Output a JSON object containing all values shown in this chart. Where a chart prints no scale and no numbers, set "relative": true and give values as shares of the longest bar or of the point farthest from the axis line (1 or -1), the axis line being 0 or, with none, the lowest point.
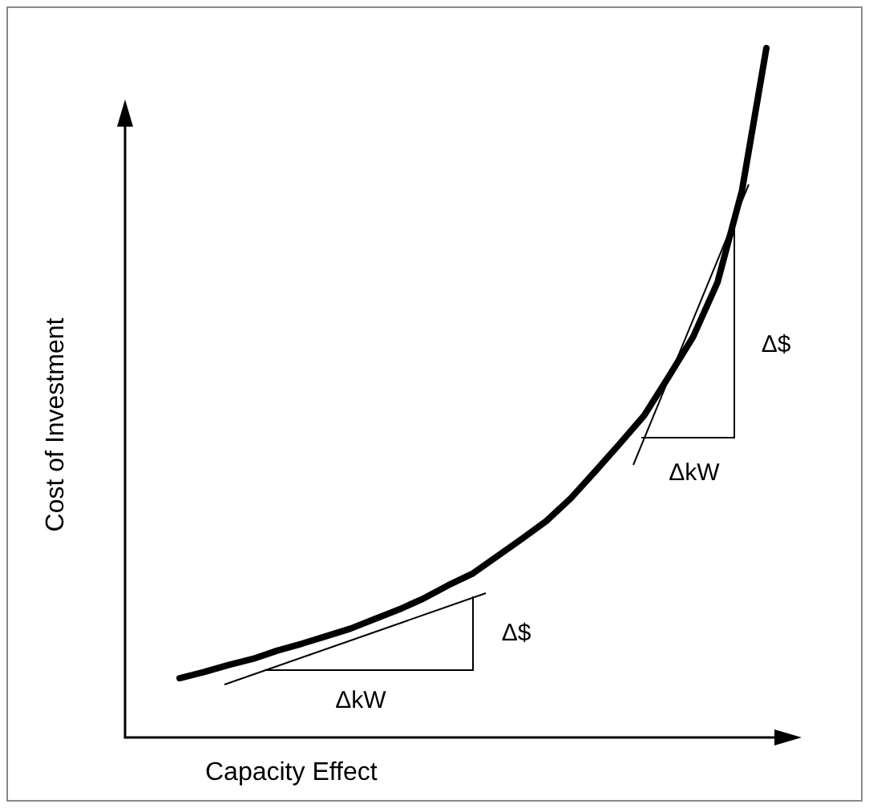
{
  "chart_data": {
    "type": "line",
    "relative": true,
    "xlabel": "Capacity Effect",
    "ylabel": "Cost of Investment",
    "tick_labels": false,
    "grid": false,
    "marker": "none",
    "line_style": "solid",
    "categories": [
      null,
      null,
      null,
      null,
      null,
      null,
      null,
      null,
      null,
      null,
      null,
      null,
      null,
      null,
      null,
      null,
      null,
      null,
      null,
      null,
      null,
      null,
      null,
      null,
      null
    ],
    "series": [
      {
        "color": "#000000",
        "values": [
          0.086,
          0.095,
          0.105,
          0.114,
          0.126,
          0.136,
          0.147,
          0.158,
          0.172,
          0.186,
          0.202,
          0.221,
          0.238,
          0.263,
          0.288,
          0.314,
          0.347,
          0.386,
          0.426,
          0.467,
          0.523,
          0.581,
          0.66,
          0.793,
          1
        ]
      }
    ],
    "annotations": [
      "ΔkW",
      "Δ$",
      "Δ$",
      "ΔkW"
    ]
  }
}
